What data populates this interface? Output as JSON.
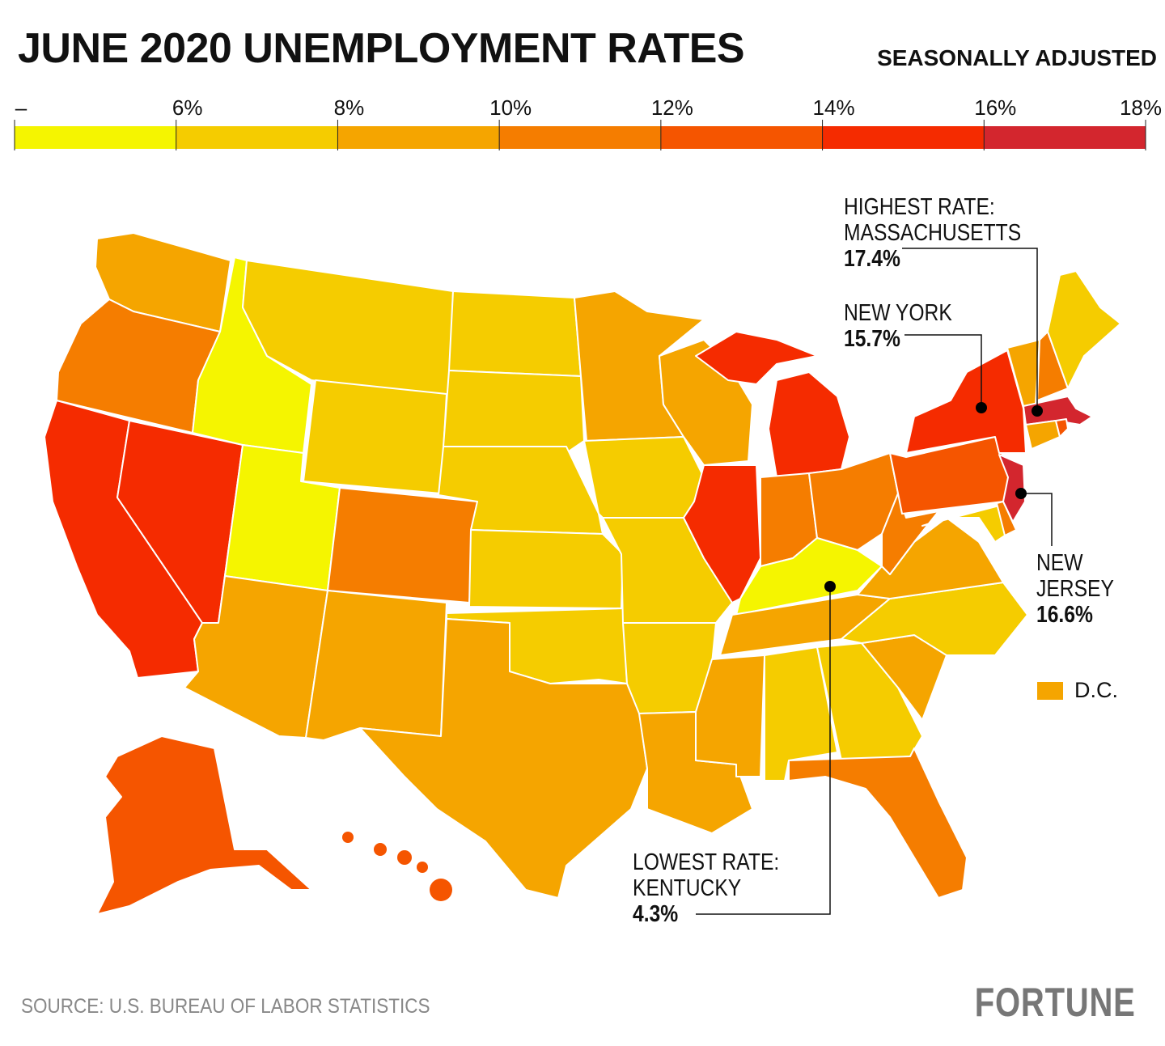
{
  "title": "JUNE 2020 UNEMPLOYMENT RATES",
  "subtitle": "SEASONALLY ADJUSTED",
  "legend": {
    "ticks": [
      "–",
      "6%",
      "8%",
      "10%",
      "12%",
      "14%",
      "16%",
      "18%"
    ],
    "bins": [
      {
        "range": "<6%",
        "color": "#f5f500"
      },
      {
        "range": "6–8%",
        "color": "#f5cc00"
      },
      {
        "range": "8–10%",
        "color": "#f5a500"
      },
      {
        "range": "10–12%",
        "color": "#f57d00"
      },
      {
        "range": "12–14%",
        "color": "#f55500"
      },
      {
        "range": "14–16%",
        "color": "#f52b00"
      },
      {
        "range": "16–18%",
        "color": "#d3262e"
      }
    ]
  },
  "states": {
    "WA": 2,
    "OR": 3,
    "CA": 5,
    "NV": 5,
    "ID": 0,
    "MT": 1,
    "WY": 1,
    "UT": 0,
    "CO": 3,
    "AZ": 2,
    "NM": 2,
    "ND": 1,
    "SD": 1,
    "NE": 1,
    "KS": 1,
    "OK": 1,
    "TX": 2,
    "MN": 2,
    "IA": 1,
    "MO": 1,
    "AR": 1,
    "LA": 2,
    "WI": 2,
    "IL": 5,
    "MI": 5,
    "IN": 3,
    "OH": 3,
    "KY": 0,
    "TN": 2,
    "MS": 2,
    "AL": 1,
    "GA": 1,
    "FL": 3,
    "SC": 2,
    "NC": 1,
    "VA": 2,
    "WV": 3,
    "PA": 4,
    "MD": 1,
    "DE": 3,
    "NJ": 6,
    "NY": 5,
    "VT": 2,
    "NH": 3,
    "ME": 1,
    "MA": 6,
    "CT": 2,
    "RI": 4,
    "AK": 4,
    "HI": 4
  },
  "dc": {
    "label": "D.C.",
    "bin": 2
  },
  "annotations": {
    "ma": {
      "line1": "HIGHEST RATE:",
      "line2": "MASSACHUSETTS",
      "value": "17.4%"
    },
    "ny": {
      "line1": "NEW YORK",
      "value": "15.7%"
    },
    "nj": {
      "line1": "NEW",
      "line2": "JERSEY",
      "value": "16.6%"
    },
    "ky": {
      "line1": "LOWEST RATE:",
      "line2": "KENTUCKY",
      "value": "4.3%"
    }
  },
  "source": "SOURCE: U.S. BUREAU OF LABOR STATISTICS",
  "logo": "FORTUNE"
}
